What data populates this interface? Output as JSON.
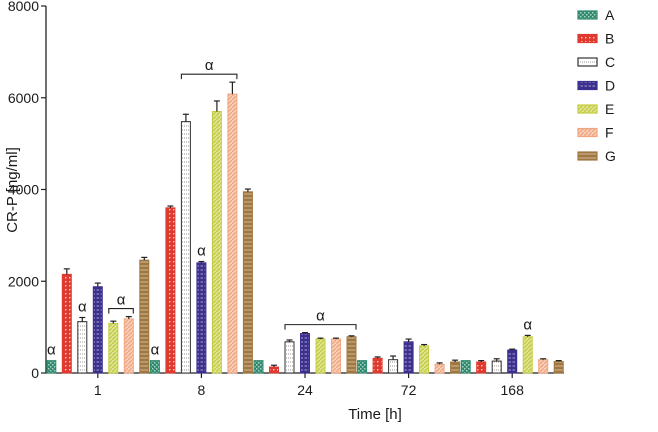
{
  "chart_data": {
    "type": "bar",
    "xlabel": "Time [h]",
    "ylabel": "CR-P [ng/ml]",
    "ylim": [
      0,
      8000
    ],
    "yticks": [
      0,
      2000,
      4000,
      6000,
      8000
    ],
    "categories": [
      "1",
      "8",
      "24",
      "72",
      "168"
    ],
    "grid": false,
    "legend_position": "top-right",
    "series": [
      {
        "name": "A",
        "color": "#2e8b6e",
        "pattern": "checker",
        "values": [
          270,
          270,
          270,
          270,
          270
        ],
        "errors": [
          0,
          0,
          0,
          0,
          0
        ]
      },
      {
        "name": "B",
        "color": "#e03a2f",
        "pattern": "dots",
        "values": [
          2150,
          3600,
          130,
          320,
          240
        ],
        "errors": [
          120,
          40,
          40,
          30,
          30
        ]
      },
      {
        "name": "C",
        "color": "#333333",
        "pattern": "hollow",
        "values": [
          1120,
          5480,
          680,
          290,
          260
        ],
        "errors": [
          90,
          160,
          40,
          80,
          50
        ]
      },
      {
        "name": "D",
        "color": "#3b2f8f",
        "pattern": "dashes",
        "values": [
          1880,
          2400,
          860,
          680,
          500
        ],
        "errors": [
          80,
          30,
          20,
          60,
          20
        ]
      },
      {
        "name": "E",
        "color": "#c3cc3c",
        "pattern": "diagonal",
        "values": [
          1080,
          5700,
          740,
          590,
          790
        ],
        "errors": [
          50,
          230,
          20,
          30,
          30
        ]
      },
      {
        "name": "F",
        "color": "#f0a57e",
        "pattern": "diagonal",
        "values": [
          1180,
          6080,
          740,
          190,
          290
        ],
        "errors": [
          50,
          260,
          20,
          30,
          20
        ]
      },
      {
        "name": "G",
        "color": "#a0773f",
        "pattern": "hbars",
        "values": [
          2460,
          3950,
          790,
          240,
          250
        ],
        "errors": [
          60,
          60,
          20,
          40,
          20
        ]
      }
    ],
    "annotations": [
      {
        "symbol": "α",
        "category": "1",
        "series": [
          "A"
        ]
      },
      {
        "symbol": "α",
        "category": "1",
        "series": [
          "C"
        ]
      },
      {
        "symbol": "α",
        "category": "1",
        "series": [
          "E",
          "F"
        ],
        "bracket": true
      },
      {
        "symbol": "α",
        "category": "8",
        "series": [
          "A"
        ]
      },
      {
        "symbol": "α",
        "category": "8",
        "series": [
          "C",
          "F"
        ],
        "bracket": true
      },
      {
        "symbol": "α",
        "category": "8",
        "series": [
          "D"
        ]
      },
      {
        "symbol": "α",
        "category": "24",
        "series": [
          "C",
          "G"
        ],
        "bracket": true
      },
      {
        "symbol": "α",
        "category": "168",
        "series": [
          "E"
        ]
      }
    ]
  }
}
